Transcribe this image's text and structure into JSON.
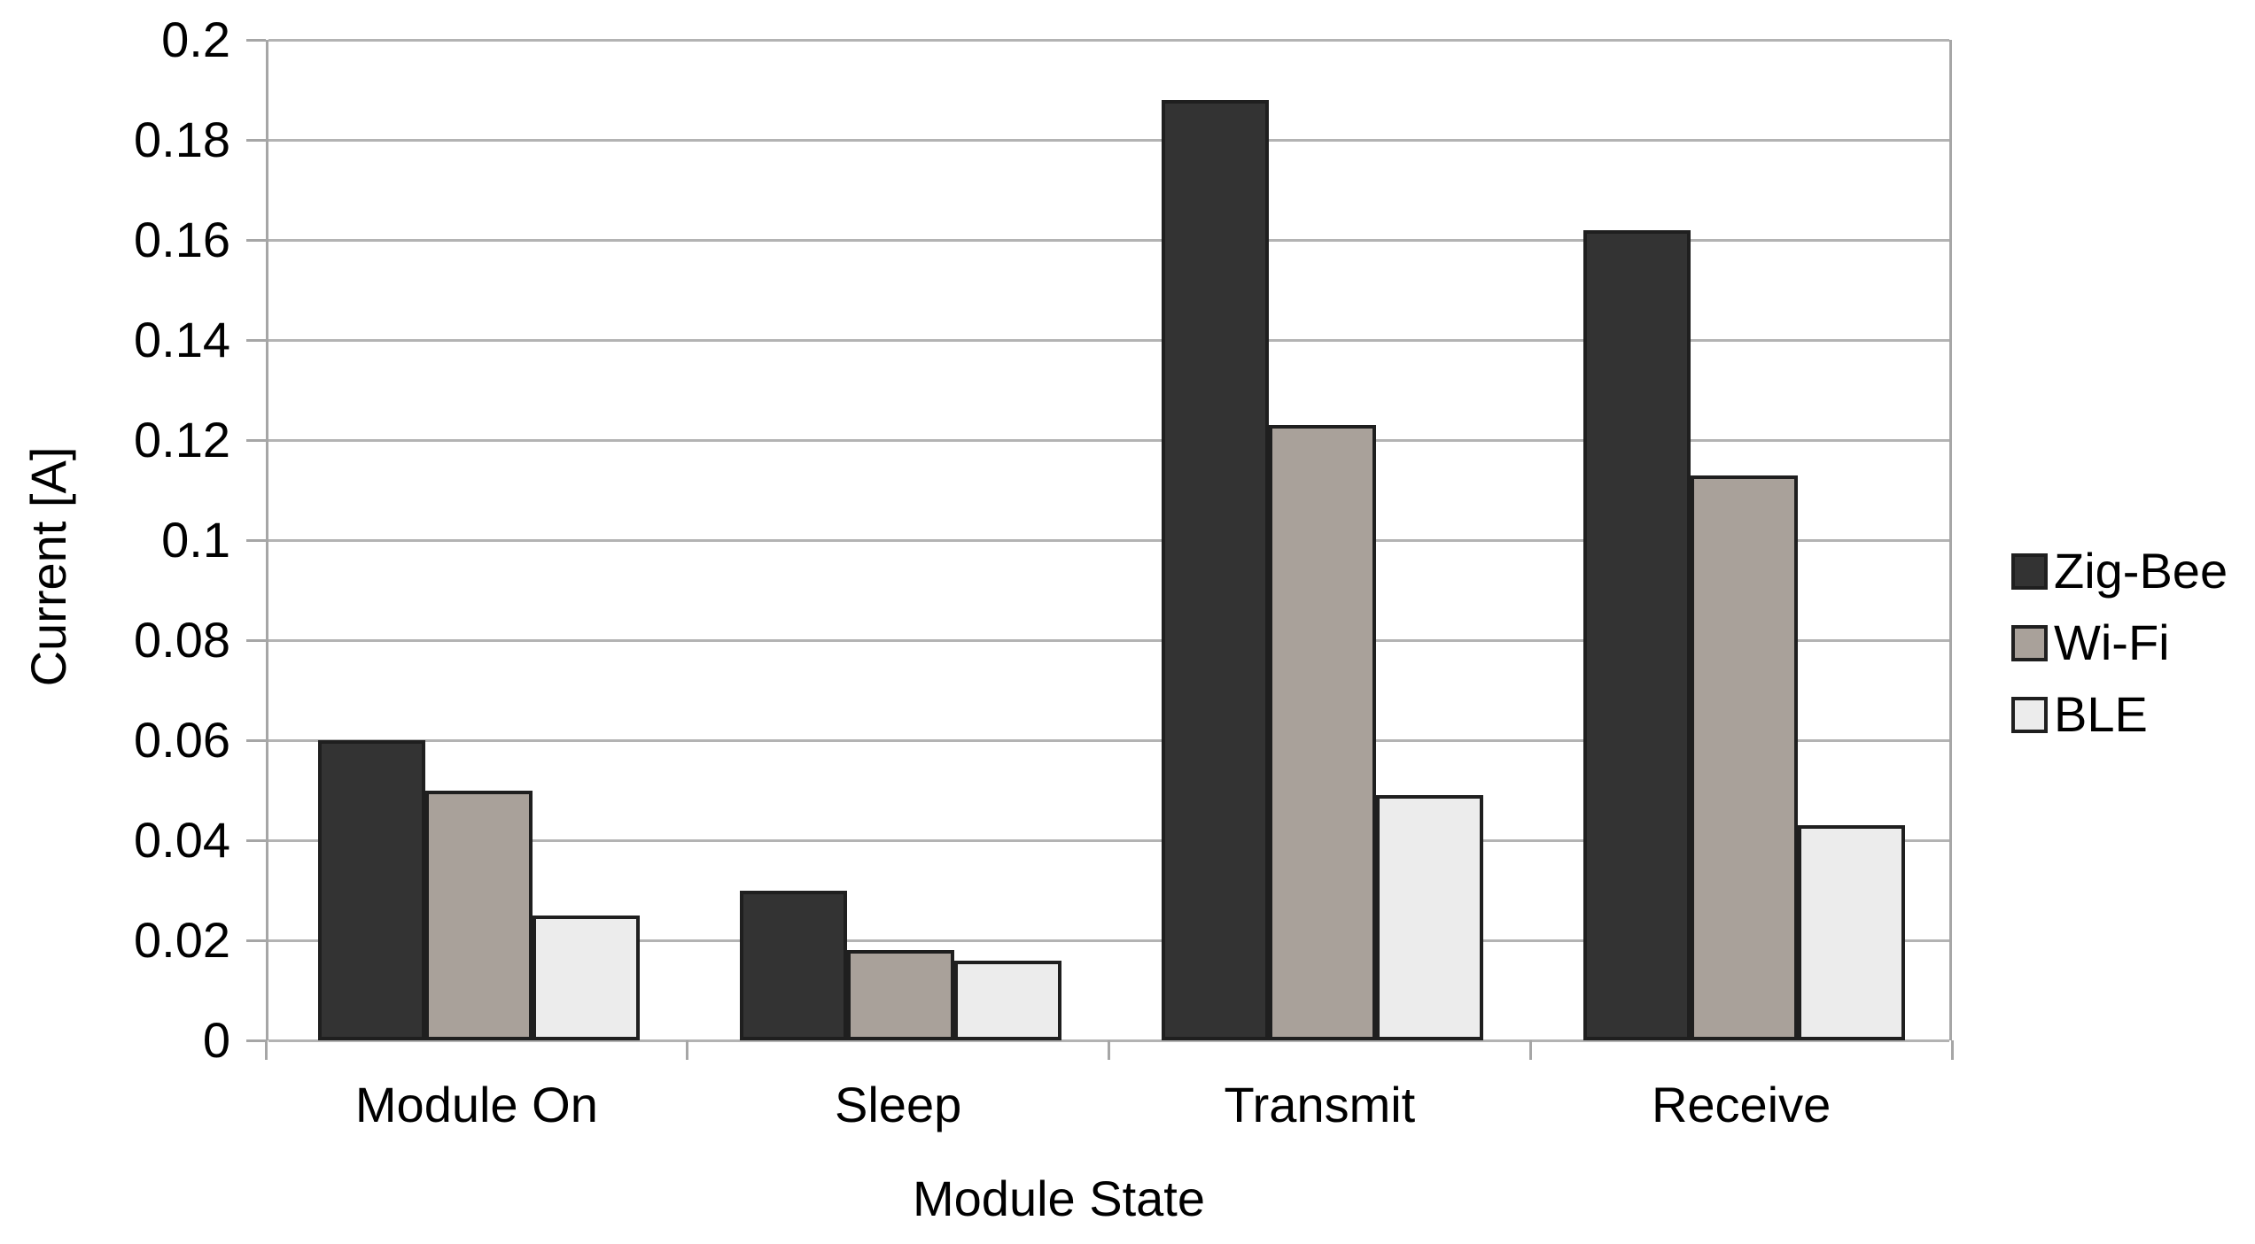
{
  "chart_data": {
    "type": "bar",
    "title": "",
    "xlabel": "Module State",
    "ylabel": "Current [A]",
    "categories": [
      "Module On",
      "Sleep",
      "Transmit",
      "Receive"
    ],
    "series": [
      {
        "name": "Zig-Bee",
        "color": "#333333",
        "values": [
          0.06,
          0.03,
          0.188,
          0.162
        ]
      },
      {
        "name": "Wi-Fi",
        "color": "#a9a19a",
        "values": [
          0.05,
          0.018,
          0.123,
          0.113
        ]
      },
      {
        "name": "BLE",
        "color": "#ececec",
        "values": [
          0.025,
          0.016,
          0.049,
          0.043
        ]
      }
    ],
    "ylim": [
      0,
      0.2
    ],
    "ytick_step": 0.02,
    "yticks_labels": [
      "0",
      "0.02",
      "0.04",
      "0.06",
      "0.08",
      "0.1",
      "0.12",
      "0.14",
      "0.16",
      "0.18",
      "0.2"
    ],
    "grid": true,
    "legend_position": "right",
    "bar_border_color": "#1f1f1f",
    "grid_color": "#b3b3b3",
    "axis_color": "#a6a6a6",
    "text_color": "#000000",
    "background_color": "#ffffff"
  }
}
